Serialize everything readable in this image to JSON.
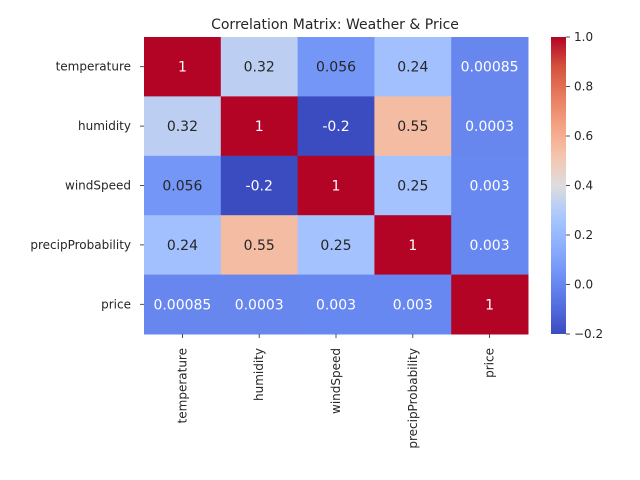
{
  "chart_data": {
    "type": "heatmap",
    "title": "Correlation Matrix: Weather & Price",
    "rows": [
      "temperature",
      "humidity",
      "windSpeed",
      "precipProbability",
      "price"
    ],
    "cols": [
      "temperature",
      "humidity",
      "windSpeed",
      "precipProbability",
      "price"
    ],
    "values": [
      [
        1,
        0.32,
        0.056,
        0.24,
        0.00085
      ],
      [
        0.32,
        1,
        -0.2,
        0.55,
        0.0003
      ],
      [
        0.056,
        -0.2,
        1,
        0.25,
        0.003
      ],
      [
        0.24,
        0.55,
        0.25,
        1,
        0.003
      ],
      [
        0.00085,
        0.0003,
        0.003,
        0.003,
        1
      ]
    ],
    "labels": [
      [
        "1",
        "0.32",
        "0.056",
        "0.24",
        "0.00085"
      ],
      [
        "0.32",
        "1",
        "-0.2",
        "0.55",
        "0.0003"
      ],
      [
        "0.056",
        "-0.2",
        "1",
        "0.25",
        "0.003"
      ],
      [
        "0.24",
        "0.55",
        "0.25",
        "1",
        "0.003"
      ],
      [
        "0.00085",
        "0.0003",
        "0.003",
        "0.003",
        "1"
      ]
    ],
    "colormap": "coolwarm",
    "vmin": -0.2,
    "vmax": 1.0,
    "colorbar_ticks": [
      -0.2,
      0.0,
      0.2,
      0.4,
      0.6,
      0.8,
      1.0
    ],
    "colorbar_tick_labels": [
      "−0.2",
      "0.0",
      "0.2",
      "0.4",
      "0.6",
      "0.8",
      "1.0"
    ]
  }
}
